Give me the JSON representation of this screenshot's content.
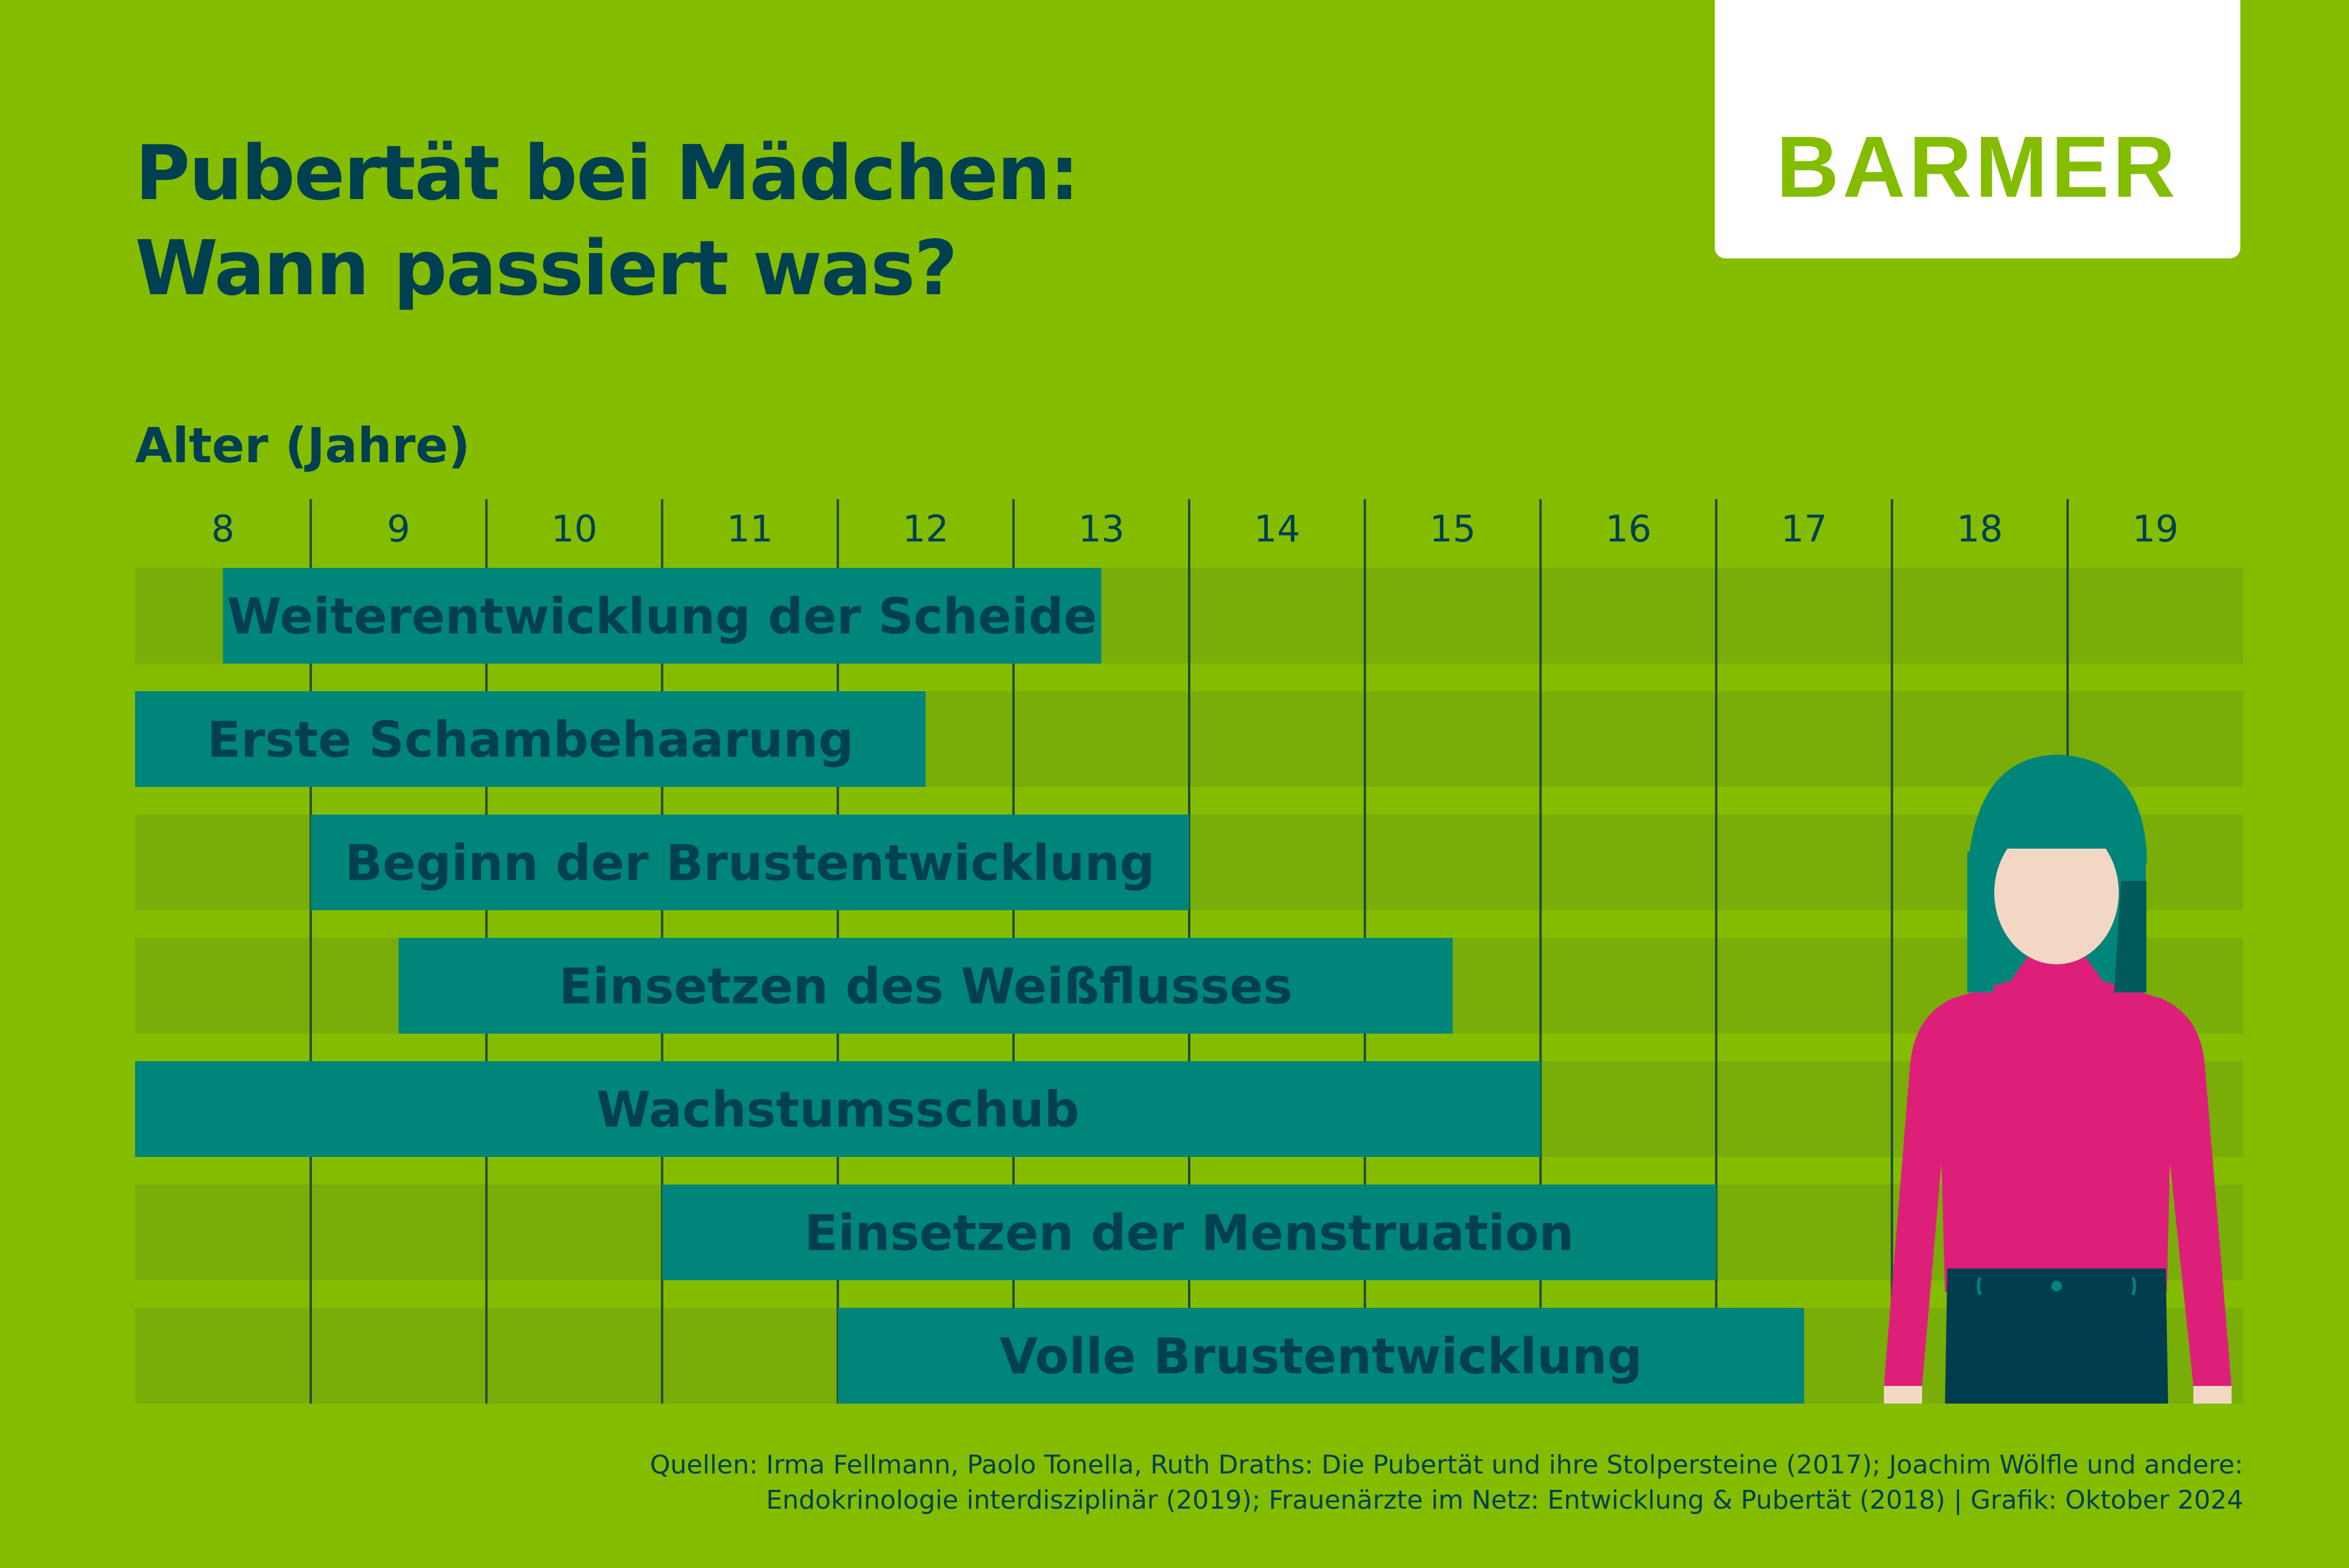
{
  "title_line1": "Pubertät bei Mädchen:",
  "title_line2": "Wann passiert was?",
  "logo": "BARMER",
  "source_line1": "Quellen: Irma Fellmann, Paolo Tonella, Ruth Draths: Die Pubertät und ihre Stolpersteine (2017); Joachim Wölfle und andere:",
  "source_line2": "Endokrinologie interdisziplinär (2019); Frauenärzte im Netz: Entwicklung & Pubertät (2018) | Grafik: Oktober 2024",
  "colors": {
    "background": "#84bd00",
    "row_band": "#79ae08",
    "bar": "#00857a",
    "text": "#004050",
    "grid": "#1e4a3a",
    "sweater": "#dd1f7a",
    "hair": "#00857a",
    "skin": "#f2d8c4",
    "pants": "#003e4f"
  },
  "chart_data": {
    "type": "bar",
    "orientation": "horizontal-range",
    "xlabel": "Alter (Jahre)",
    "ticks": [
      "8",
      "9",
      "10",
      "11",
      "12",
      "13",
      "14",
      "15",
      "16",
      "17",
      "18",
      "19"
    ],
    "xlim": [
      7.5,
      19.5
    ],
    "grid": true,
    "bars": [
      {
        "label": "Weiterentwicklung der Scheide",
        "start": 8,
        "end": 13
      },
      {
        "label": "Erste Schambehaarung",
        "start": 7.5,
        "end": 12
      },
      {
        "label": "Beginn der Brustentwicklung",
        "start": 8.5,
        "end": 13.5
      },
      {
        "label": "Einsetzen des Weißflusses",
        "start": 9,
        "end": 15
      },
      {
        "label": "Wachstumsschub",
        "start": 7.5,
        "end": 15.5
      },
      {
        "label": "Einsetzen der Menstruation",
        "start": 10.5,
        "end": 16.5
      },
      {
        "label": "Volle Brustentwicklung",
        "start": 11.5,
        "end": 17
      }
    ]
  }
}
